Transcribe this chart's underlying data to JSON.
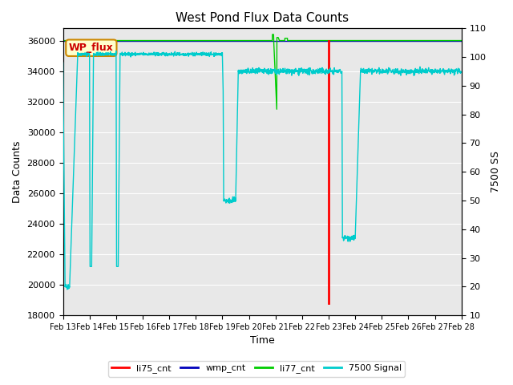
{
  "title": "West Pond Flux Data Counts",
  "xlabel": "Time",
  "ylabel_left": "Data Counts",
  "ylabel_right": "7500 SS",
  "ylim_left": [
    18000,
    36800
  ],
  "ylim_right": [
    10,
    110
  ],
  "yticks_left": [
    18000,
    20000,
    22000,
    24000,
    26000,
    28000,
    30000,
    32000,
    34000,
    36000
  ],
  "yticks_right": [
    10,
    20,
    30,
    40,
    50,
    60,
    70,
    80,
    90,
    100,
    110
  ],
  "xtick_labels": [
    "Feb 13",
    "Feb 14",
    "Feb 15",
    "Feb 16",
    "Feb 17",
    "Feb 18",
    "Feb 19",
    "Feb 20",
    "Feb 21",
    "Feb 22",
    "Feb 23",
    "Feb 24",
    "Feb 25",
    "Feb 26",
    "Feb 27",
    "Feb 28"
  ],
  "bg_color": "#e8e8e8",
  "legend_labels": [
    "li75_cnt",
    "wmp_cnt",
    "li77_cnt",
    "7500 Signal"
  ],
  "legend_colors": [
    "#ff0000",
    "#0000bb",
    "#00cc00",
    "#00cccc"
  ],
  "annotation_text": "WP_flux",
  "annotation_color": "#cc0000",
  "annotation_bg": "#ffffcc",
  "annotation_border": "#cc8800"
}
